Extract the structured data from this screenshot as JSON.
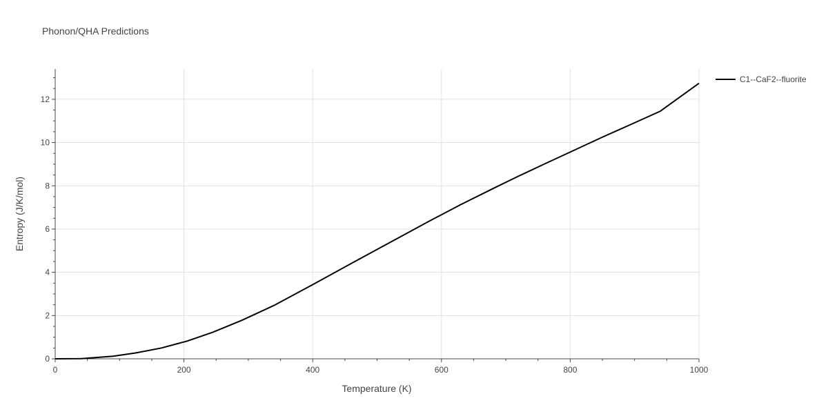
{
  "chart_data": {
    "type": "line",
    "title": "Phonon/QHA Predictions",
    "xlabel": "Temperature (K)",
    "ylabel": "Entropy (J/K/mol)",
    "xlim": [
      0,
      1000
    ],
    "ylim": [
      0,
      13.4
    ],
    "xticks": [
      0,
      200,
      400,
      600,
      800,
      1000
    ],
    "yticks": [
      0,
      2,
      4,
      6,
      8,
      10,
      12
    ],
    "grid": true,
    "legend_position": "top-right",
    "series": [
      {
        "name": "C1--CaF2--fluorite",
        "color": "#000000",
        "x": [
          0,
          20,
          40,
          60,
          90,
          125,
          165,
          205,
          245,
          290,
          340,
          400,
          460,
          520,
          580,
          630,
          680,
          720,
          760,
          800,
          850,
          890,
          940,
          1000
        ],
        "y": [
          0,
          0.005,
          0.01,
          0.05,
          0.12,
          0.27,
          0.5,
          0.82,
          1.23,
          1.78,
          2.47,
          3.43,
          4.41,
          5.38,
          6.35,
          7.13,
          7.87,
          8.45,
          9.01,
          9.56,
          10.25,
          10.78,
          11.45,
          12.74
        ]
      }
    ]
  }
}
